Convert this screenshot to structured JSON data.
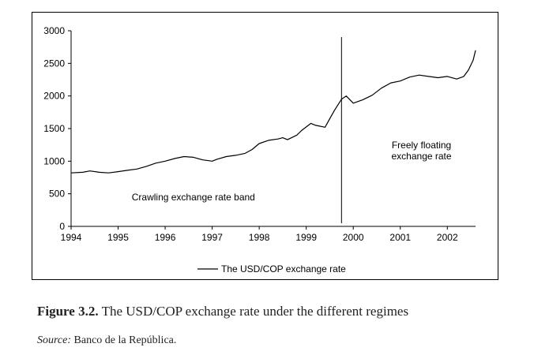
{
  "chart_data": {
    "type": "line",
    "title": "",
    "xlabel": "",
    "ylabel": "",
    "xlim": [
      1994,
      2002.6
    ],
    "ylim": [
      0,
      3000
    ],
    "x_ticks": [
      "1994",
      "1995",
      "1996",
      "1997",
      "1998",
      "1999",
      "2000",
      "2001",
      "2002"
    ],
    "y_ticks": [
      "0",
      "500",
      "1000",
      "1500",
      "2000",
      "2500",
      "3000"
    ],
    "legend": {
      "label": "The USD/COP exchange rate",
      "placement": "bottom-center"
    },
    "regime_change_year": 1999.75,
    "annotations": {
      "left_regime": "Crawling exchange rate band",
      "right_regime_line1": "Freely floating",
      "right_regime_line2": "exchange rate"
    },
    "series": [
      {
        "name": "The USD/COP exchange rate",
        "x": [
          1994.0,
          1994.25,
          1994.4,
          1994.6,
          1994.8,
          1995.0,
          1995.2,
          1995.4,
          1995.6,
          1995.8,
          1996.0,
          1996.2,
          1996.4,
          1996.6,
          1996.8,
          1997.0,
          1997.1,
          1997.3,
          1997.5,
          1997.7,
          1997.85,
          1998.0,
          1998.2,
          1998.4,
          1998.5,
          1998.6,
          1998.8,
          1998.9,
          1999.1,
          1999.2,
          1999.4,
          1999.5,
          1999.6,
          1999.75,
          1999.85,
          2000.0,
          2000.2,
          2000.4,
          2000.6,
          2000.8,
          2001.0,
          2001.2,
          2001.4,
          2001.6,
          2001.8,
          2002.0,
          2002.2,
          2002.35,
          2002.45,
          2002.55,
          2002.6
        ],
        "values": [
          820,
          830,
          850,
          830,
          820,
          840,
          860,
          880,
          920,
          970,
          1000,
          1040,
          1070,
          1060,
          1020,
          1000,
          1030,
          1070,
          1090,
          1120,
          1180,
          1270,
          1320,
          1340,
          1360,
          1330,
          1400,
          1470,
          1580,
          1550,
          1520,
          1650,
          1780,
          1950,
          2000,
          1890,
          1940,
          2010,
          2120,
          2200,
          2230,
          2290,
          2320,
          2300,
          2280,
          2300,
          2260,
          2300,
          2400,
          2550,
          2700
        ]
      }
    ]
  },
  "figure_caption": {
    "label": "Figure 3.2.",
    "text": "The USD/COP exchange rate under the different regimes"
  },
  "source": {
    "label": "Source:",
    "text": "Banco de la República."
  }
}
